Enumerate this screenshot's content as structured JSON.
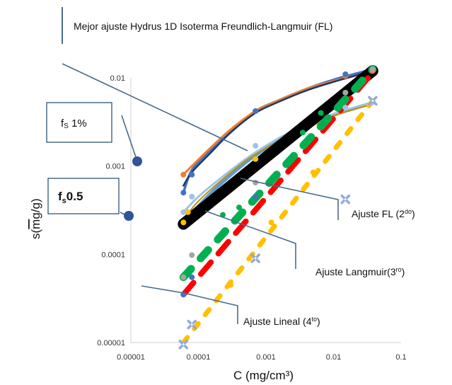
{
  "chart_data": {
    "type": "scatter",
    "title": "Mejor ajuste Hydrus 1D Isoterma Freundlich-Langmuir (FL)",
    "xlabel": "C (mg/cm³)",
    "ylabel_parts": {
      "base": "s(",
      "overline": "m",
      "rest": "g/g)"
    },
    "x_scale": "log",
    "y_scale": "log",
    "xlim": [
      1e-05,
      0.1
    ],
    "ylim": [
      1e-05,
      0.01
    ],
    "x_ticks": [
      {
        "value": 1e-05,
        "label": "0.00001"
      },
      {
        "value": 0.0001,
        "label": "0.0001"
      },
      {
        "value": 0.001,
        "label": "0.001"
      },
      {
        "value": 0.01,
        "label": "0.01"
      },
      {
        "value": 0.1,
        "label": "0.1"
      }
    ],
    "y_ticks": [
      {
        "value": 1e-05,
        "label": "0.00001"
      },
      {
        "value": 0.0001,
        "label": "0.0001"
      },
      {
        "value": 0.001,
        "label": "0.001"
      },
      {
        "value": 0.01,
        "label": "0.01"
      }
    ],
    "series": [
      {
        "style": "curve",
        "color": "#4472c4",
        "width": 3.5,
        "points": [
          [
            6e-05,
            0.0005
          ],
          [
            8e-05,
            0.0009
          ],
          [
            0.00015,
            0.0015
          ],
          [
            0.0003,
            0.0025
          ],
          [
            0.0007,
            0.0042
          ],
          [
            0.0015,
            0.0055
          ],
          [
            0.004,
            0.0075
          ],
          [
            0.01,
            0.0095
          ],
          [
            0.02,
            0.011
          ],
          [
            0.038,
            0.0125
          ]
        ]
      },
      {
        "style": "curve",
        "color": "#ed7d31",
        "width": 3,
        "points": [
          [
            6e-05,
            0.0008
          ],
          [
            8e-05,
            0.001
          ],
          [
            0.00015,
            0.0016
          ],
          [
            0.0003,
            0.0026
          ],
          [
            0.0007,
            0.0042
          ],
          [
            0.0015,
            0.0055
          ],
          [
            0.004,
            0.0075
          ],
          [
            0.01,
            0.0092
          ],
          [
            0.02,
            0.0105
          ],
          [
            0.038,
            0.012
          ]
        ]
      },
      {
        "style": "curve",
        "color": "#203864",
        "width": 2.5,
        "points": [
          [
            6e-05,
            0.0006
          ],
          [
            8e-05,
            0.00085
          ],
          [
            0.00015,
            0.0014
          ],
          [
            0.0003,
            0.0024
          ],
          [
            0.0007,
            0.004
          ],
          [
            0.0015,
            0.0053
          ],
          [
            0.004,
            0.0072
          ],
          [
            0.01,
            0.009
          ],
          [
            0.02,
            0.0105
          ],
          [
            0.038,
            0.0122
          ]
        ]
      },
      {
        "style": "curve",
        "color": "#5b9bd5",
        "width": 5,
        "points": [
          [
            6e-05,
            0.00022
          ],
          [
            0.0001,
            0.00035
          ],
          [
            0.0002,
            0.0006
          ],
          [
            0.0005,
            0.0011
          ],
          [
            0.001,
            0.0016
          ],
          [
            0.002,
            0.0022
          ],
          [
            0.005,
            0.003
          ],
          [
            0.01,
            0.0038
          ],
          [
            0.02,
            0.0045
          ],
          [
            0.038,
            0.0052
          ]
        ]
      },
      {
        "style": "curve",
        "color": "#9dc3e6",
        "width": 3,
        "points": [
          [
            6e-05,
            0.0003
          ],
          [
            0.0001,
            0.00045
          ],
          [
            0.0002,
            0.0007
          ],
          [
            0.0005,
            0.0012
          ],
          [
            0.001,
            0.0017
          ],
          [
            0.002,
            0.0023
          ],
          [
            0.005,
            0.0031
          ],
          [
            0.01,
            0.0039
          ],
          [
            0.02,
            0.0046
          ],
          [
            0.038,
            0.0053
          ]
        ]
      },
      {
        "style": "curve",
        "color": "#bf9000",
        "width": 2,
        "points": [
          [
            6e-05,
            0.00025
          ],
          [
            0.0001,
            0.0004
          ],
          [
            0.0002,
            0.00065
          ],
          [
            0.0005,
            0.00115
          ],
          [
            0.001,
            0.0016
          ],
          [
            0.002,
            0.0021
          ],
          [
            0.005,
            0.0029
          ],
          [
            0.01,
            0.0037
          ],
          [
            0.02,
            0.0044
          ],
          [
            0.038,
            0.005
          ]
        ]
      },
      {
        "style": "line",
        "color": "#000000",
        "width": 16,
        "points": [
          [
            6e-05,
            0.00022
          ],
          [
            0.038,
            0.012
          ]
        ]
      },
      {
        "style": "dash",
        "color": "#ff0000",
        "width": 8,
        "dash": "22 16",
        "points": [
          [
            6e-05,
            3.5e-05
          ],
          [
            0.038,
            0.0115
          ]
        ]
      },
      {
        "style": "dash",
        "color": "#00b050",
        "width": 11,
        "dash": "16 20",
        "points": [
          [
            6e-05,
            5.5e-05
          ],
          [
            0.038,
            0.0125
          ]
        ]
      },
      {
        "style": "dash",
        "color": "#ffc000",
        "width": 7,
        "dash": "9 16",
        "points": [
          [
            6e-05,
            1e-05
          ],
          [
            0.038,
            0.0055
          ]
        ]
      },
      {
        "style": "markers",
        "color": "#ed7d31",
        "marker": "dot",
        "points": [
          [
            6e-05,
            0.0008
          ],
          [
            0.0007,
            0.0042
          ],
          [
            0.015,
            0.0105
          ],
          [
            0.038,
            0.012
          ]
        ]
      },
      {
        "style": "markers",
        "color": "#4472c4",
        "marker": "dot",
        "points": [
          [
            6e-05,
            0.0005
          ],
          [
            8e-05,
            0.0008
          ],
          [
            0.0007,
            0.0042
          ],
          [
            0.015,
            0.011
          ]
        ]
      },
      {
        "style": "markers",
        "color": "#9dc3e6",
        "marker": "dot",
        "points": [
          [
            6e-05,
            0.0003
          ],
          [
            8e-05,
            0.00045
          ],
          [
            0.0007,
            0.0017
          ],
          [
            0.015,
            0.0046
          ],
          [
            0.038,
            0.0053
          ]
        ]
      },
      {
        "style": "markers",
        "color": "#ffc000",
        "marker": "dot",
        "points": [
          [
            6e-05,
            0.00023
          ],
          [
            7e-05,
            0.0003
          ],
          [
            0.0007,
            0.0012
          ],
          [
            0.005,
            0.00085
          ],
          [
            0.0012,
            0.00023
          ],
          [
            0.0003,
            4.5e-05
          ],
          [
            0.038,
            0.0125
          ]
        ]
      },
      {
        "style": "markers",
        "color": "#a5a5a5",
        "marker": "dot",
        "points": [
          [
            6e-05,
            5.5e-05
          ],
          [
            8e-05,
            9.8e-05
          ],
          [
            0.0007,
            0.00065
          ],
          [
            0.015,
            0.0068
          ],
          [
            0.038,
            0.0125
          ]
        ]
      },
      {
        "style": "markers",
        "color": "#00b050",
        "marker": "dot",
        "points": [
          [
            0.00023,
            0.00028
          ],
          [
            0.0004,
            0.00034
          ],
          [
            0.0035,
            0.0024
          ],
          [
            0.0065,
            0.004
          ]
        ]
      },
      {
        "style": "markers",
        "color": "#4472c4",
        "marker": "dot",
        "points": [
          [
            6e-05,
            3.5e-05
          ],
          [
            8e-05,
            5.5e-05
          ],
          [
            0.0007,
            0.00045
          ]
        ]
      },
      {
        "style": "markers",
        "color": "#8faadc",
        "marker": "cross",
        "points": [
          [
            6e-05,
            9.5e-06
          ],
          [
            8e-05,
            1.6e-05
          ],
          [
            0.0007,
            9e-05
          ],
          [
            0.015,
            0.00042
          ],
          [
            0.038,
            0.0055
          ]
        ]
      }
    ],
    "annotations": [
      {
        "id": "title",
        "text": "Mejor ajuste Hydrus 1D Isoterma Freundlich-Langmuir (FL)"
      },
      {
        "id": "fs1",
        "text": "f",
        "sub": "S",
        "after": " 1%"
      },
      {
        "id": "fs05",
        "text": "f",
        "sub": "s",
        "after": "0.5"
      },
      {
        "id": "fl",
        "text": "Ajuste FL (2",
        "sup": "do",
        "after": ")"
      },
      {
        "id": "lang",
        "text": "Ajuste Langmuir(3",
        "sup": "ro",
        "after": ")"
      },
      {
        "id": "lineal",
        "text": "Ajuste Lineal (4",
        "sup": "to",
        "after": ")"
      }
    ]
  }
}
